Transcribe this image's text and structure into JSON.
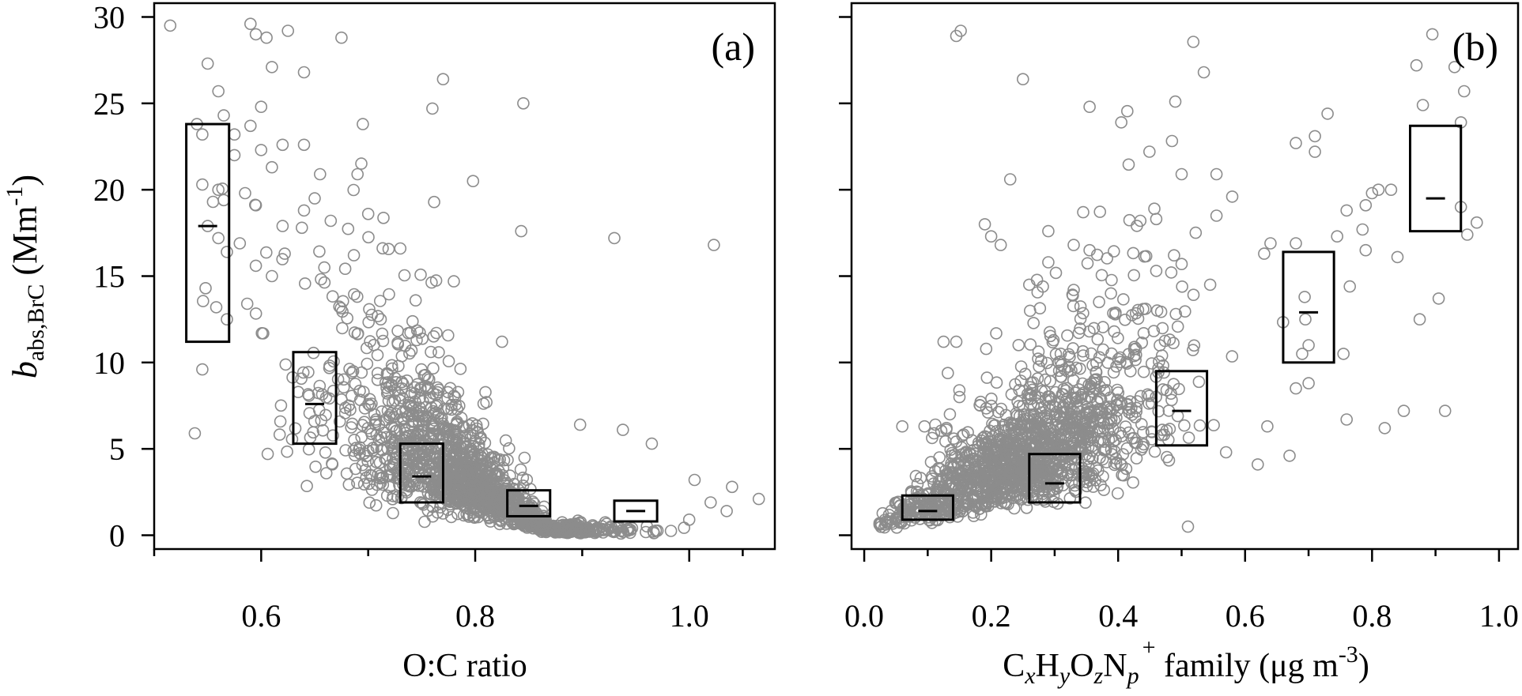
{
  "chart_data": [
    {
      "type": "scatter",
      "panel_label": "(a)",
      "ylabel": {
        "main": "b",
        "sub": "abs,BrC",
        "unit": " (Mm",
        "unit_sup": "-1",
        "unit_close": ")"
      },
      "xlabel": "O:C ratio",
      "xlim": [
        0.5,
        1.08
      ],
      "ylim": [
        -0.8,
        30.8
      ],
      "xticks": [
        0.6,
        0.8,
        1.0
      ],
      "xtick_labels": [
        "0.6",
        "0.8",
        "1.0"
      ],
      "xminor_ticks": [
        0.5,
        0.7,
        0.9,
        1.05
      ],
      "yticks": [
        0,
        5,
        10,
        15,
        20,
        25,
        30
      ],
      "ytick_labels": [
        "0",
        "5",
        "10",
        "15",
        "20",
        "25",
        "30"
      ],
      "marker_color": "#8c8c8c",
      "grid": false,
      "outliers": [
        [
          0.515,
          29.5
        ],
        [
          0.59,
          29.6
        ],
        [
          0.595,
          29.0
        ],
        [
          0.605,
          28.8
        ],
        [
          0.625,
          29.2
        ],
        [
          0.675,
          28.8
        ],
        [
          0.55,
          27.3
        ],
        [
          0.64,
          26.8
        ],
        [
          0.61,
          27.1
        ],
        [
          0.77,
          26.4
        ],
        [
          0.845,
          25.0
        ],
        [
          0.76,
          24.7
        ],
        [
          0.56,
          25.7
        ],
        [
          0.6,
          24.8
        ],
        [
          0.59,
          23.7
        ],
        [
          0.695,
          23.8
        ],
        [
          0.54,
          23.8
        ],
        [
          0.565,
          24.3
        ],
        [
          0.545,
          23.2
        ],
        [
          0.575,
          23.2
        ],
        [
          0.6,
          22.3
        ],
        [
          0.62,
          22.6
        ],
        [
          0.64,
          22.6
        ],
        [
          0.575,
          22.0
        ],
        [
          0.61,
          21.3
        ],
        [
          0.655,
          20.9
        ],
        [
          0.69,
          20.9
        ],
        [
          0.798,
          20.5
        ],
        [
          0.545,
          20.3
        ],
        [
          0.56,
          20.0
        ],
        [
          0.585,
          19.8
        ],
        [
          0.555,
          19.3
        ],
        [
          0.595,
          19.1
        ],
        [
          0.565,
          19.4
        ],
        [
          0.65,
          19.5
        ],
        [
          0.64,
          18.8
        ],
        [
          0.7,
          18.6
        ],
        [
          0.665,
          18.2
        ],
        [
          0.55,
          17.9
        ],
        [
          0.56,
          17.2
        ],
        [
          0.62,
          17.9
        ],
        [
          0.638,
          17.8
        ],
        [
          0.843,
          17.6
        ],
        [
          0.93,
          17.2
        ],
        [
          1.023,
          16.8
        ],
        [
          0.58,
          16.9
        ],
        [
          0.568,
          16.4
        ],
        [
          0.73,
          16.6
        ],
        [
          0.595,
          15.6
        ],
        [
          0.61,
          15.0
        ],
        [
          0.622,
          16.3
        ],
        [
          0.78,
          14.7
        ],
        [
          0.548,
          14.3
        ],
        [
          0.558,
          13.2
        ],
        [
          0.568,
          12.5
        ],
        [
          0.587,
          13.4
        ],
        [
          0.545,
          9.6
        ],
        [
          0.538,
          5.9
        ],
        [
          0.825,
          11.2
        ],
        [
          0.898,
          6.4
        ],
        [
          0.938,
          6.1
        ],
        [
          0.965,
          5.3
        ],
        [
          1.005,
          3.2
        ],
        [
          1.02,
          1.9
        ],
        [
          1.04,
          2.8
        ],
        [
          1.065,
          2.1
        ],
        [
          1.035,
          1.4
        ],
        [
          1.0,
          0.9
        ]
      ],
      "cloud": {
        "center_x": 0.79,
        "center_y": 2.5,
        "x_spread": 0.065,
        "count": 1500
      },
      "boxes": [
        {
          "x_low": 0.53,
          "x_high": 0.57,
          "q1": 11.2,
          "median": 17.9,
          "q3": 23.8
        },
        {
          "x_low": 0.63,
          "x_high": 0.67,
          "q1": 5.3,
          "median": 7.6,
          "q3": 10.6
        },
        {
          "x_low": 0.73,
          "x_high": 0.77,
          "q1": 1.9,
          "median": 3.4,
          "q3": 5.3
        },
        {
          "x_low": 0.83,
          "x_high": 0.87,
          "q1": 1.1,
          "median": 1.7,
          "q3": 2.6
        },
        {
          "x_low": 0.93,
          "x_high": 0.97,
          "q1": 0.8,
          "median": 1.4,
          "q3": 2.0
        }
      ]
    },
    {
      "type": "scatter",
      "panel_label": "(b)",
      "xlabel": {
        "c": "C",
        "c_sub": "x",
        "h": "H",
        "h_sub": "y",
        "o": "O",
        "o_sub": "z",
        "n": "N",
        "n_sub": "p",
        "plus": "+",
        "rest": " family (μg m",
        "rest_sup": "-3",
        "close": ")"
      },
      "xlim": [
        -0.02,
        1.03
      ],
      "ylim": [
        -0.8,
        30.8
      ],
      "xticks": [
        0.0,
        0.2,
        0.4,
        0.6,
        0.8,
        1.0
      ],
      "xtick_labels": [
        "0.0",
        "0.2",
        "0.4",
        "0.6",
        "0.8",
        "1.0"
      ],
      "xminor_ticks": [
        0.1,
        0.3,
        0.5,
        0.7,
        0.9
      ],
      "yticks": [
        0,
        5,
        10,
        15,
        20,
        25,
        30
      ],
      "marker_color": "#8c8c8c",
      "grid": false,
      "outliers": [
        [
          0.145,
          28.9
        ],
        [
          0.152,
          29.2
        ],
        [
          0.25,
          26.4
        ],
        [
          0.535,
          26.8
        ],
        [
          0.49,
          25.1
        ],
        [
          0.355,
          24.8
        ],
        [
          0.405,
          23.9
        ],
        [
          0.23,
          20.6
        ],
        [
          0.5,
          20.9
        ],
        [
          0.555,
          20.9
        ],
        [
          0.895,
          29.0
        ],
        [
          0.87,
          27.2
        ],
        [
          0.88,
          24.9
        ],
        [
          0.93,
          27.1
        ],
        [
          0.945,
          25.7
        ],
        [
          0.94,
          23.9
        ],
        [
          0.73,
          24.4
        ],
        [
          0.71,
          23.1
        ],
        [
          0.68,
          22.7
        ],
        [
          0.71,
          22.2
        ],
        [
          0.345,
          18.7
        ],
        [
          0.46,
          18.3
        ],
        [
          0.555,
          18.5
        ],
        [
          0.63,
          16.3
        ],
        [
          0.64,
          16.9
        ],
        [
          0.68,
          16.9
        ],
        [
          0.79,
          19.1
        ],
        [
          0.81,
          20.0
        ],
        [
          0.83,
          20.0
        ],
        [
          0.8,
          19.8
        ],
        [
          0.76,
          18.8
        ],
        [
          0.785,
          17.7
        ],
        [
          0.745,
          17.3
        ],
        [
          0.79,
          16.5
        ],
        [
          0.84,
          16.1
        ],
        [
          0.965,
          18.1
        ],
        [
          0.95,
          17.4
        ],
        [
          0.94,
          19.0
        ],
        [
          0.2,
          17.3
        ],
        [
          0.19,
          18.0
        ],
        [
          0.215,
          16.8
        ],
        [
          0.29,
          17.6
        ],
        [
          0.33,
          16.8
        ],
        [
          0.29,
          15.8
        ],
        [
          0.26,
          14.5
        ],
        [
          0.33,
          14.2
        ],
        [
          0.37,
          13.5
        ],
        [
          0.355,
          16.5
        ],
        [
          0.46,
          15.3
        ],
        [
          0.545,
          14.5
        ],
        [
          0.5,
          15.7
        ],
        [
          0.695,
          12.5
        ],
        [
          0.765,
          14.4
        ],
        [
          0.69,
          10.5
        ],
        [
          0.7,
          11.0
        ],
        [
          0.755,
          10.5
        ],
        [
          0.7,
          8.8
        ],
        [
          0.68,
          8.5
        ],
        [
          0.67,
          4.6
        ],
        [
          0.76,
          6.7
        ],
        [
          0.82,
          6.2
        ],
        [
          0.85,
          7.2
        ],
        [
          0.875,
          12.5
        ],
        [
          0.905,
          13.7
        ],
        [
          0.915,
          7.2
        ],
        [
          0.635,
          6.3
        ],
        [
          0.62,
          4.1
        ],
        [
          0.57,
          4.8
        ],
        [
          0.51,
          0.5
        ],
        [
          0.145,
          11.2
        ],
        [
          0.125,
          11.2
        ],
        [
          0.15,
          8.0
        ],
        [
          0.135,
          7.0
        ],
        [
          0.095,
          6.3
        ],
        [
          0.06,
          6.3
        ],
        [
          0.11,
          5.9
        ]
      ],
      "cloud": {
        "trend_intercept": 0.2,
        "trend_slope": 17.5,
        "count": 1500
      },
      "boxes": [
        {
          "x_low": 0.06,
          "x_high": 0.14,
          "q1": 0.9,
          "median": 1.4,
          "q3": 2.3
        },
        {
          "x_low": 0.26,
          "x_high": 0.34,
          "q1": 1.9,
          "median": 3.0,
          "q3": 4.7
        },
        {
          "x_low": 0.46,
          "x_high": 0.54,
          "q1": 5.2,
          "median": 7.2,
          "q3": 9.5
        },
        {
          "x_low": 0.66,
          "x_high": 0.74,
          "q1": 10.0,
          "median": 12.9,
          "q3": 16.4
        },
        {
          "x_low": 0.86,
          "x_high": 0.94,
          "q1": 17.6,
          "median": 19.5,
          "q3": 23.7
        }
      ]
    }
  ]
}
